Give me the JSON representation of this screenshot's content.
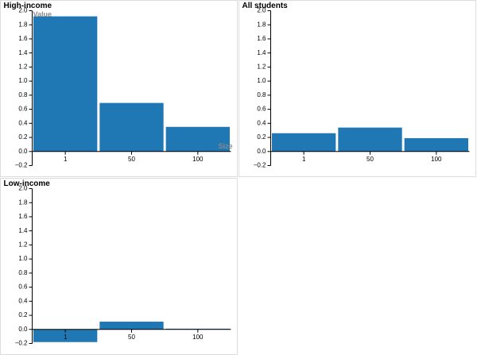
{
  "chart_data": [
    {
      "type": "bar",
      "title": "High-income",
      "x_label": "Size",
      "y_label": "Value",
      "categories": [
        "1",
        "50",
        "100"
      ],
      "values": [
        1.92,
        0.69,
        0.35
      ],
      "color": "#1f77b4",
      "ylim": [
        -0.2,
        2.0
      ],
      "yticks": [
        {
          "value": -0.2,
          "label": "−0.2"
        },
        {
          "value": 0,
          "label": "0.0"
        },
        0.2,
        0.4,
        0.6,
        0.8,
        {
          "value": 1,
          "label": "1.0"
        },
        1.2,
        1.4,
        1.6,
        1.8,
        {
          "value": 2,
          "label": "2.0"
        }
      ]
    },
    {
      "type": "bar",
      "title": "All students",
      "categories": [
        "1",
        "50",
        "100"
      ],
      "values": [
        0.26,
        0.34,
        0.19
      ],
      "color": "#1f77b4",
      "ylim": [
        -0.2,
        2.0
      ],
      "yticks": [
        {
          "value": -0.2,
          "label": "−0.2"
        },
        {
          "value": 0,
          "label": "0.0"
        },
        0.2,
        0.4,
        0.6,
        0.8,
        {
          "value": 1,
          "label": "1.0"
        },
        1.2,
        1.4,
        1.6,
        1.8,
        {
          "value": 2,
          "label": "2.0"
        }
      ]
    },
    {
      "type": "bar",
      "title": "Low-income",
      "categories": [
        "1",
        "50",
        "100"
      ],
      "values": [
        -0.18,
        0.11,
        0.01
      ],
      "color": "#1f77b4",
      "ylim": [
        -0.2,
        2.0
      ],
      "yticks": [
        {
          "value": -0.2,
          "label": "−0.2"
        },
        {
          "value": 0,
          "label": "0.0"
        },
        0.2,
        0.4,
        0.6,
        0.8,
        {
          "value": 1,
          "label": "1.0"
        },
        1.2,
        1.4,
        1.6,
        1.8,
        {
          "value": 2,
          "label": "2.0"
        }
      ]
    }
  ]
}
